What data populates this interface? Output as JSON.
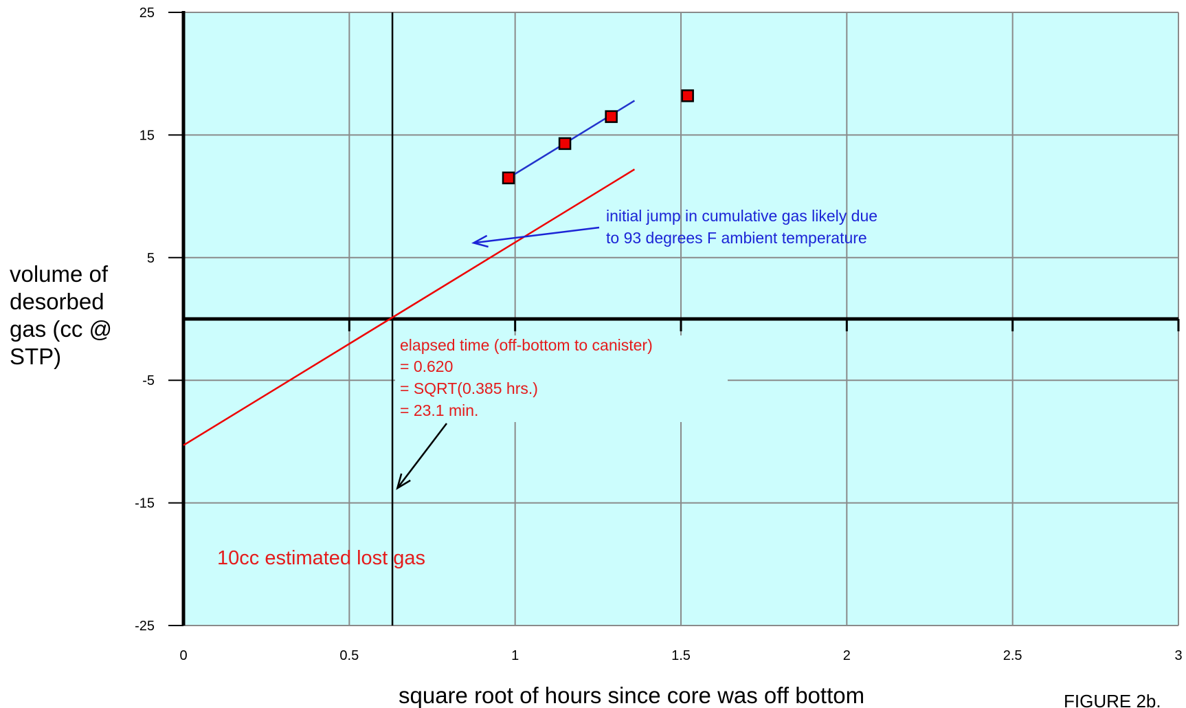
{
  "chart_data": {
    "type": "scatter",
    "title": "",
    "xlabel": "square root of hours since core was off bottom",
    "ylabel": [
      "volume of",
      "desorbed",
      "gas (cc @",
      "STP)"
    ],
    "xlim": [
      0,
      3
    ],
    "ylim": [
      -25,
      25
    ],
    "x_ticks": [
      "0",
      "0.5",
      "1",
      "1.5",
      "2",
      "2.5",
      "3"
    ],
    "y_ticks": [
      "25",
      "15",
      "5",
      "-5",
      "-15",
      "-25"
    ],
    "grid": true,
    "background_color": "#ccfdfd",
    "series": [
      {
        "type": "points",
        "color": "#ee0000",
        "points": [
          {
            "x": 0.98,
            "y": 11.5
          },
          {
            "x": 1.15,
            "y": 14.3
          },
          {
            "x": 1.29,
            "y": 16.5
          },
          {
            "x": 1.52,
            "y": 18.2
          }
        ]
      },
      {
        "type": "line",
        "color": "#2233cc",
        "points": [
          {
            "x": 0.98,
            "y": 11.5
          },
          {
            "x": 1.36,
            "y": 17.8
          }
        ]
      },
      {
        "type": "line",
        "color": "#ee0000",
        "points": [
          {
            "x": 0.0,
            "y": -10.3
          },
          {
            "x": 1.36,
            "y": 12.2
          }
        ]
      }
    ],
    "vertical_line_x": 0.63,
    "annotations": {
      "temperature_note": [
        "initial jump in cumulative gas likely due",
        "to 93 degrees F ambient temperature"
      ],
      "elapsed_note": [
        "elapsed time (off-bottom to canister)",
        "= 0.620",
        "= SQRT(0.385 hrs.)",
        "= 23.1 min."
      ],
      "lost_gas_note": "10cc estimated lost gas"
    },
    "figure_label": "FIGURE 2b."
  }
}
